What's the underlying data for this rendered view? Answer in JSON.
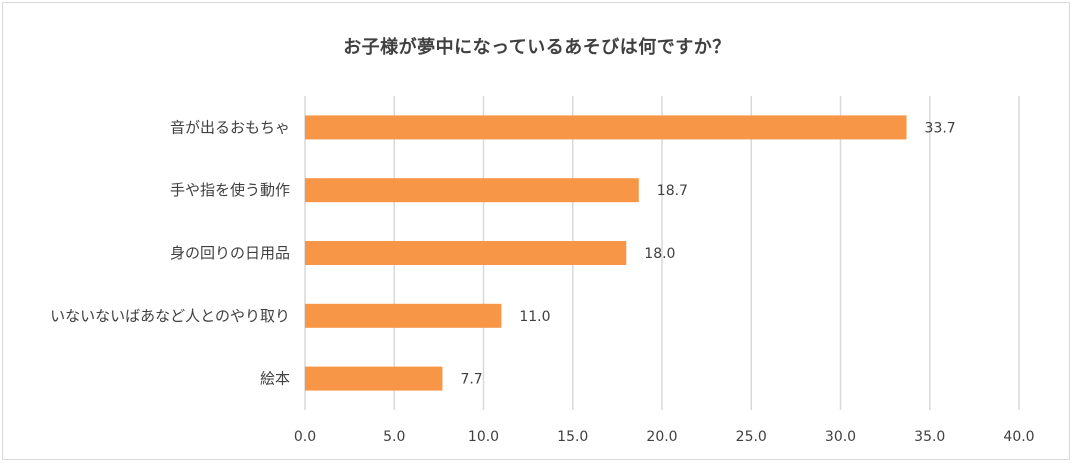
{
  "chart_data": {
    "type": "bar",
    "orientation": "horizontal",
    "title": "お子様が夢中になっているあそびは何ですか？",
    "categories": [
      "音が出るおもちゃ",
      "手や指を使う動作",
      "身の回りの日用品",
      "いないないばあなど人とのやり取り",
      "絵本"
    ],
    "values": [
      33.7,
      18.7,
      18.0,
      11.0,
      7.7
    ],
    "value_labels": [
      "33.7",
      "18.7",
      "18.0",
      "11.0",
      "7.7"
    ],
    "x_ticks": [
      "0.0",
      "5.0",
      "10.0",
      "15.0",
      "20.0",
      "25.0",
      "30.0",
      "35.0",
      "40.0"
    ],
    "xlim": [
      0,
      40
    ],
    "grid": true,
    "bar_color": "#F79646",
    "grid_color": "#D9D9D9",
    "text_color": "#404040"
  }
}
